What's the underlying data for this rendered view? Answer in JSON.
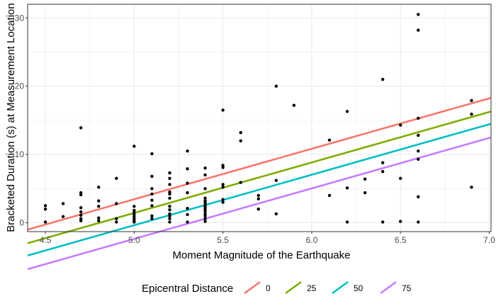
{
  "chart_data": {
    "type": "scatter",
    "xlabel": "Moment Magnitude of the Earthquake",
    "ylabel": "Bracketed Duration (s) at Measurement Location",
    "xlim": [
      4.4,
      7.01
    ],
    "ylim": [
      -1.3,
      32.0
    ],
    "x_ticks": [
      4.5,
      5.0,
      5.5,
      6.0,
      6.5,
      7.0
    ],
    "x_tick_labels": [
      "4.5",
      "5.0",
      "5.5",
      "6.0",
      "6.5",
      "7.0"
    ],
    "y_ticks": [
      0,
      10,
      20,
      30
    ],
    "y_tick_labels": [
      "0",
      "10",
      "20",
      "30"
    ],
    "grid": true,
    "legend": {
      "title": "Epicentral Distance",
      "position": "bottom",
      "entries": [
        {
          "label": "0",
          "color": "#F8766D"
        },
        {
          "label": "25",
          "color": "#7CAE00"
        },
        {
          "label": "50",
          "color": "#00BFC4"
        },
        {
          "label": "75",
          "color": "#C77CFF"
        }
      ]
    },
    "series": [
      {
        "name": "0",
        "type": "line",
        "color": "#F8766D",
        "x": [
          4.4,
          7.01
        ],
        "y": [
          -1.0,
          18.3
        ]
      },
      {
        "name": "25",
        "type": "line",
        "color": "#7CAE00",
        "x": [
          4.4,
          7.01
        ],
        "y": [
          -3.0,
          16.3
        ]
      },
      {
        "name": "50",
        "type": "line",
        "color": "#00BFC4",
        "x": [
          4.4,
          7.01
        ],
        "y": [
          -4.8,
          14.5
        ]
      },
      {
        "name": "75",
        "type": "line",
        "color": "#C77CFF",
        "x": [
          4.4,
          7.01
        ],
        "y": [
          -6.8,
          12.5
        ]
      }
    ],
    "points": [
      [
        4.5,
        2.5
      ],
      [
        4.5,
        2.0
      ],
      [
        4.5,
        0.1
      ],
      [
        4.6,
        2.8
      ],
      [
        4.6,
        0.9
      ],
      [
        4.7,
        13.9
      ],
      [
        4.7,
        4.4
      ],
      [
        4.7,
        4.1
      ],
      [
        4.7,
        2.2
      ],
      [
        4.7,
        1.6
      ],
      [
        4.7,
        1.1
      ],
      [
        4.7,
        0.6
      ],
      [
        4.7,
        0.3
      ],
      [
        4.8,
        5.2
      ],
      [
        4.8,
        3.2
      ],
      [
        4.8,
        2.4
      ],
      [
        4.8,
        0.7
      ],
      [
        4.8,
        0.3
      ],
      [
        4.9,
        6.5
      ],
      [
        4.9,
        2.8
      ],
      [
        4.9,
        0.6
      ],
      [
        4.9,
        0.1
      ],
      [
        5.0,
        11.2
      ],
      [
        5.0,
        2.4
      ],
      [
        5.0,
        1.8
      ],
      [
        5.0,
        1.5
      ],
      [
        5.0,
        1.2
      ],
      [
        5.0,
        0.9
      ],
      [
        5.0,
        0.6
      ],
      [
        5.0,
        0.3
      ],
      [
        5.0,
        0.1
      ],
      [
        5.1,
        10.1
      ],
      [
        5.1,
        6.8
      ],
      [
        5.1,
        5.0
      ],
      [
        5.1,
        4.2
      ],
      [
        5.1,
        3.3
      ],
      [
        5.1,
        2.5
      ],
      [
        5.1,
        1.0
      ],
      [
        5.1,
        0.6
      ],
      [
        5.2,
        7.3
      ],
      [
        5.2,
        6.5
      ],
      [
        5.2,
        5.6
      ],
      [
        5.2,
        4.5
      ],
      [
        5.2,
        4.2
      ],
      [
        5.2,
        3.6
      ],
      [
        5.2,
        2.4
      ],
      [
        5.2,
        1.9
      ],
      [
        5.2,
        1.3
      ],
      [
        5.2,
        1.0
      ],
      [
        5.2,
        0.6
      ],
      [
        5.2,
        0.1
      ],
      [
        5.3,
        10.5
      ],
      [
        5.3,
        7.9
      ],
      [
        5.3,
        5.8
      ],
      [
        5.3,
        4.4
      ],
      [
        5.3,
        2.1
      ],
      [
        5.3,
        1.2
      ],
      [
        5.3,
        0.1
      ],
      [
        5.4,
        8.0
      ],
      [
        5.4,
        7.0
      ],
      [
        5.4,
        5.0
      ],
      [
        5.4,
        3.6
      ],
      [
        5.4,
        3.2
      ],
      [
        5.4,
        2.9
      ],
      [
        5.4,
        2.6
      ],
      [
        5.4,
        2.3
      ],
      [
        5.4,
        2.0
      ],
      [
        5.4,
        1.7
      ],
      [
        5.4,
        1.3
      ],
      [
        5.4,
        1.0
      ],
      [
        5.4,
        0.6
      ],
      [
        5.4,
        0.2
      ],
      [
        5.5,
        16.5
      ],
      [
        5.5,
        8.4
      ],
      [
        5.5,
        8.1
      ],
      [
        5.5,
        5.6
      ],
      [
        5.5,
        5.2
      ],
      [
        5.5,
        3.4
      ],
      [
        5.5,
        3.0
      ],
      [
        5.6,
        13.2
      ],
      [
        5.6,
        12.0
      ],
      [
        5.6,
        5.9
      ],
      [
        5.7,
        4.0
      ],
      [
        5.7,
        3.5
      ],
      [
        5.7,
        2.0
      ],
      [
        5.8,
        20.0
      ],
      [
        5.8,
        6.2
      ],
      [
        5.8,
        1.3
      ],
      [
        5.9,
        17.2
      ],
      [
        6.1,
        12.1
      ],
      [
        6.1,
        4.0
      ],
      [
        6.2,
        16.3
      ],
      [
        6.2,
        5.1
      ],
      [
        6.2,
        0.1
      ],
      [
        6.3,
        6.4
      ],
      [
        6.3,
        4.4
      ],
      [
        6.4,
        21.0
      ],
      [
        6.4,
        8.8
      ],
      [
        6.4,
        7.5
      ],
      [
        6.4,
        0.1
      ],
      [
        6.5,
        14.3
      ],
      [
        6.5,
        6.5
      ],
      [
        6.5,
        0.2
      ],
      [
        6.6,
        30.5
      ],
      [
        6.6,
        28.2
      ],
      [
        6.6,
        15.3
      ],
      [
        6.6,
        12.8
      ],
      [
        6.6,
        10.5
      ],
      [
        6.6,
        9.3
      ],
      [
        6.6,
        3.8
      ],
      [
        6.6,
        0.1
      ],
      [
        6.9,
        17.9
      ],
      [
        6.9,
        15.9
      ],
      [
        6.9,
        5.2
      ]
    ]
  }
}
